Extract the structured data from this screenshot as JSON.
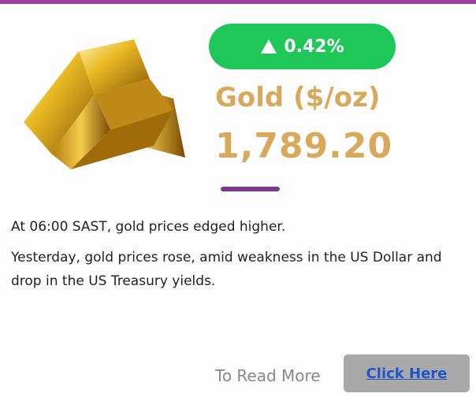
{
  "badge": {
    "change": "0.42%"
  },
  "title": "Gold ($/oz)",
  "price": "1,789.20",
  "paragraphs": [
    "At 06:00 SAST, gold prices edged higher.",
    "Yesterday, gold prices rose, amid weakness in the US Dollar and drop in the US Treasury yields."
  ],
  "footer": {
    "prompt": "To Read More",
    "button": "Click Here"
  }
}
